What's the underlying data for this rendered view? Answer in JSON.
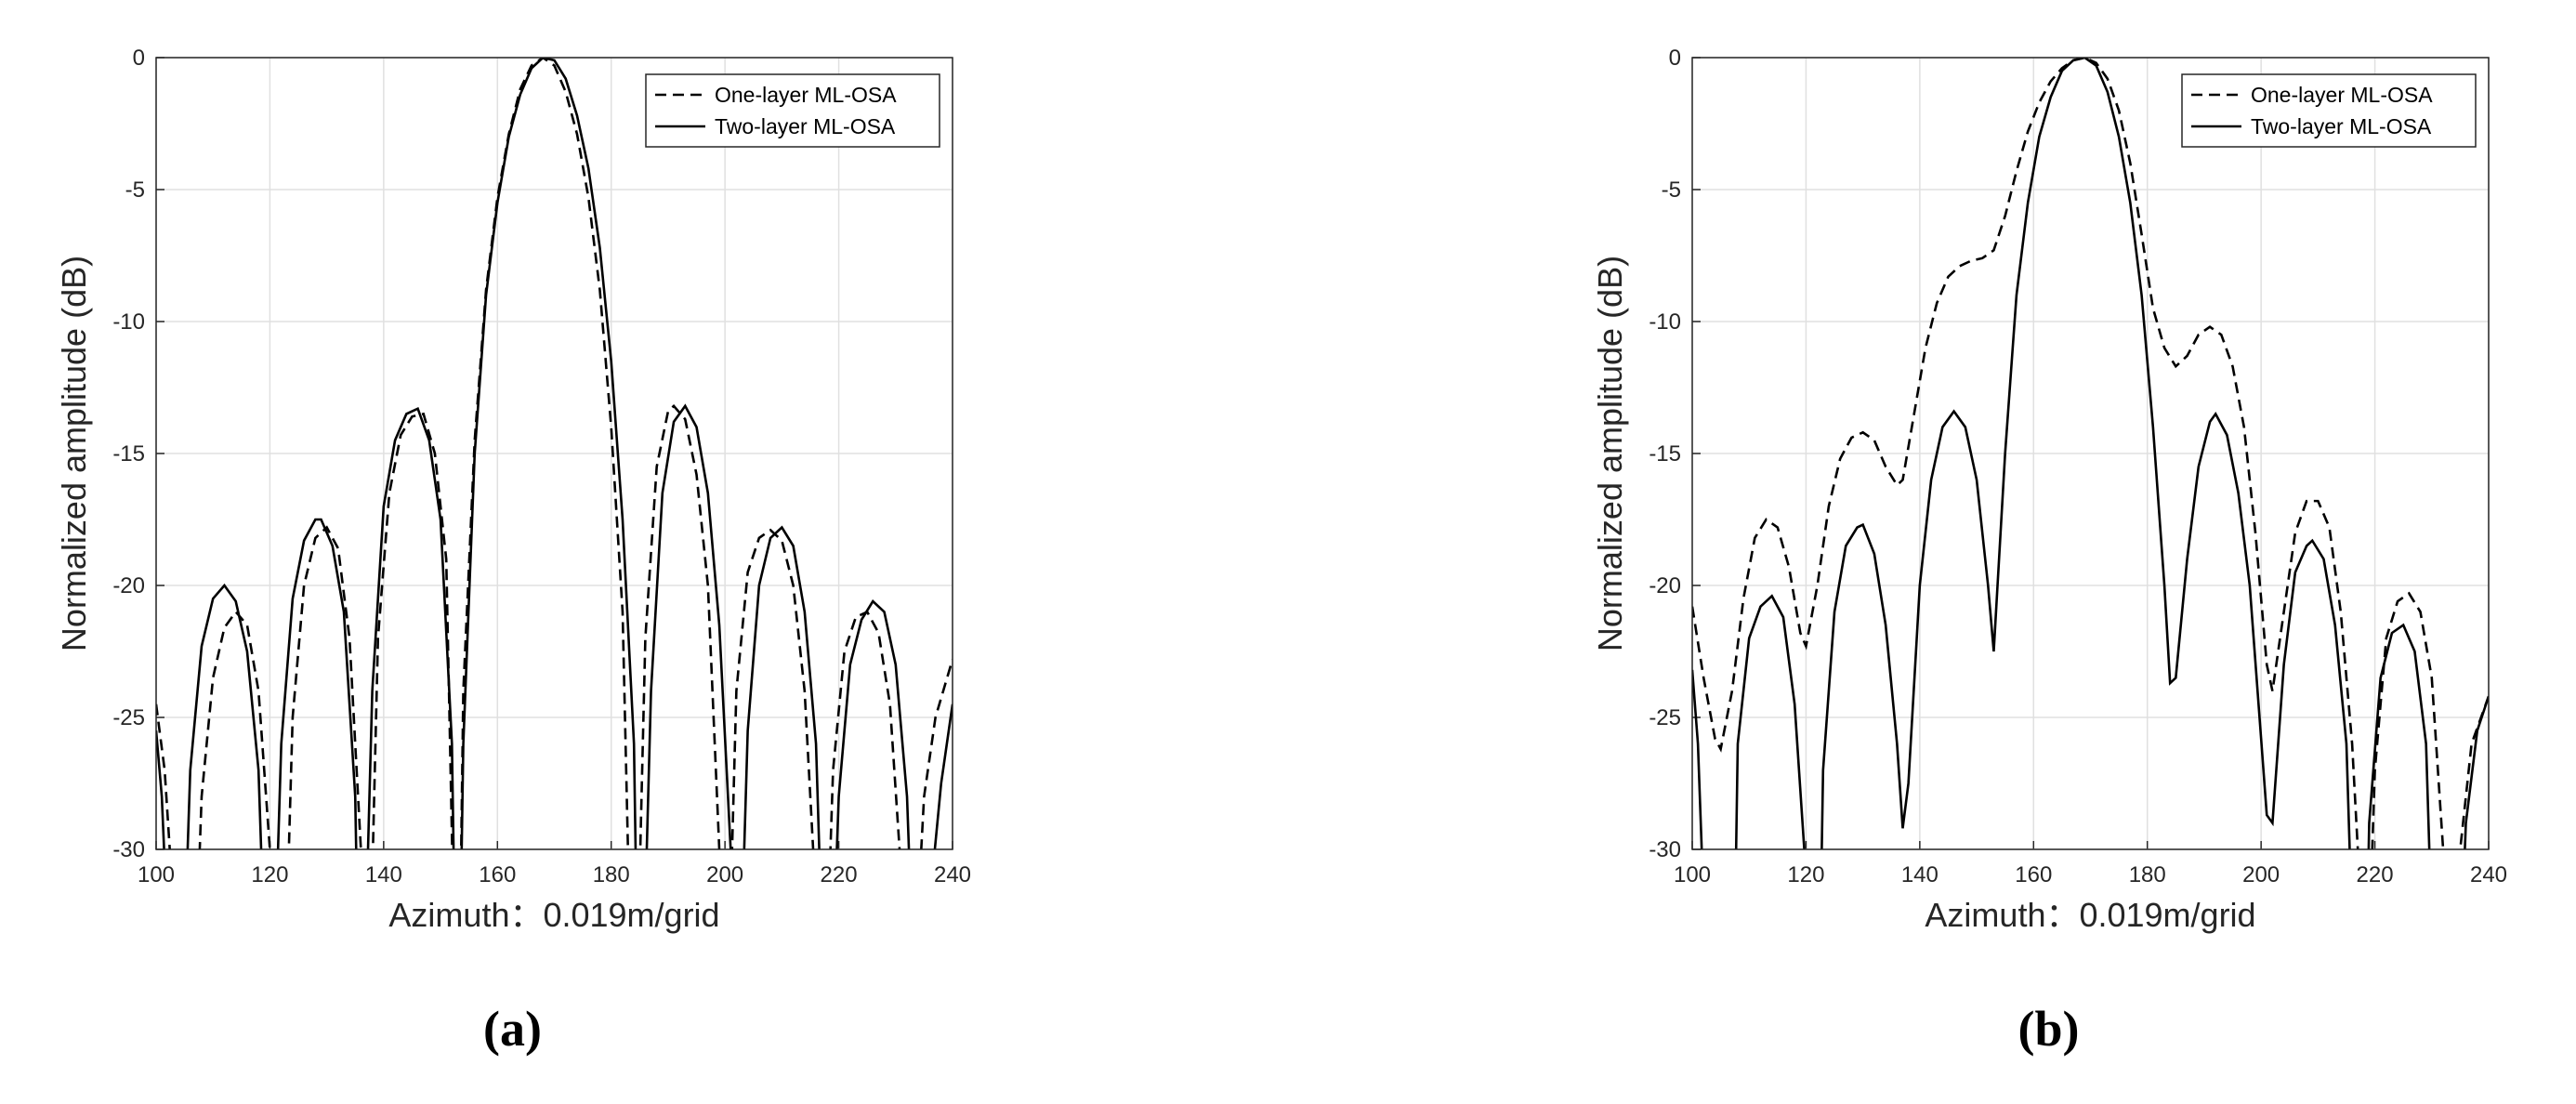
{
  "chart_data": [
    {
      "type": "line",
      "xlabel": "Azimuth：0.019m/grid",
      "ylabel": "Normalized amplitude (dB)",
      "caption": "(a)",
      "xlim": [
        100,
        240
      ],
      "xticks": [
        100,
        120,
        140,
        160,
        180,
        200,
        220,
        240
      ],
      "ylim": [
        -30,
        0
      ],
      "yticks": [
        -30,
        -25,
        -20,
        -15,
        -10,
        -5,
        0
      ],
      "grid": true,
      "legend": "upper right",
      "series": [
        {
          "name": "One-layer ML-OSA",
          "color": "#000000",
          "dash": "dashed",
          "x": [
            100,
            101.5,
            103,
            106,
            108,
            110,
            112,
            114,
            116,
            118,
            120,
            122,
            124,
            126,
            128,
            130,
            132,
            134,
            136,
            137,
            139,
            141,
            143,
            145,
            147,
            149,
            151,
            153,
            154,
            156,
            158,
            160,
            162,
            164,
            166,
            168,
            170,
            172,
            174,
            176,
            178,
            180,
            182,
            184,
            186,
            188,
            190,
            191,
            193,
            195,
            197,
            199,
            200,
            202,
            204,
            206,
            208,
            210,
            212,
            214,
            216,
            217,
            219,
            221,
            223,
            225,
            227,
            229,
            231,
            232,
            235,
            237,
            240
          ],
          "values": [
            -24.5,
            -27,
            -32,
            -40,
            -28,
            -23.5,
            -21.6,
            -21,
            -21.5,
            -24,
            -30,
            -40,
            -25,
            -20,
            -18.2,
            -17.8,
            -18.6,
            -22,
            -30,
            -40,
            -22,
            -16.5,
            -14.3,
            -13.6,
            -13.5,
            -15,
            -19,
            -40,
            -24,
            -14.5,
            -8.8,
            -5.3,
            -2.9,
            -1.2,
            -0.3,
            0,
            -0.3,
            -1.3,
            -2.9,
            -5.3,
            -8.8,
            -14,
            -21,
            -40,
            -22,
            -15.5,
            -13.4,
            -13.2,
            -13.7,
            -15.8,
            -20,
            -30,
            -40,
            -24,
            -19.5,
            -18.2,
            -17.9,
            -18.3,
            -20,
            -24,
            -32,
            -40,
            -27,
            -22.5,
            -21.2,
            -21,
            -21.8,
            -24.5,
            -31,
            -40,
            -28,
            -25,
            -22.8
          ]
        },
        {
          "name": "Two-layer ML-OSA",
          "color": "#000000",
          "dash": "solid",
          "x": [
            100,
            101,
            102,
            104,
            106,
            108,
            110,
            112,
            114,
            116,
            118,
            120,
            122,
            124,
            126,
            128,
            129,
            131,
            133,
            135,
            136,
            138,
            140,
            142,
            144,
            146,
            148,
            150,
            152,
            153,
            154,
            156,
            158,
            160,
            162,
            164,
            166,
            168,
            170,
            172,
            174,
            176,
            178,
            180,
            182,
            184,
            185,
            187,
            189,
            191,
            193,
            195,
            197,
            199,
            201,
            202,
            204,
            206,
            208,
            210,
            212,
            214,
            216,
            218,
            220,
            222,
            224,
            226,
            228,
            230,
            232,
            234,
            236,
            238,
            240
          ],
          "values": [
            -25.5,
            -28,
            -33,
            -40,
            -27,
            -22.3,
            -20.5,
            -20,
            -20.6,
            -22.5,
            -27,
            -40,
            -26,
            -20.5,
            -18.3,
            -17.5,
            -17.5,
            -18.5,
            -21,
            -28,
            -40,
            -24,
            -17,
            -14.5,
            -13.5,
            -13.3,
            -14.5,
            -17.5,
            -26,
            -40,
            -26,
            -15,
            -9,
            -5.5,
            -3,
            -1.4,
            -0.4,
            0,
            -0.1,
            -0.8,
            -2.2,
            -4.2,
            -7.2,
            -11.5,
            -17.5,
            -26,
            -40,
            -24,
            -16.5,
            -13.8,
            -13.2,
            -14,
            -16.5,
            -21.5,
            -30,
            -40,
            -25.5,
            -20,
            -18.2,
            -17.8,
            -18.5,
            -21,
            -26,
            -40,
            -28,
            -23,
            -21.3,
            -20.6,
            -21,
            -23,
            -28,
            -40,
            -32,
            -27.5,
            -24.5
          ]
        }
      ]
    },
    {
      "type": "line",
      "xlabel": "Azimuth：0.019m/grid",
      "ylabel": "Normalized amplitude (dB)",
      "caption": "(b)",
      "xlim": [
        100,
        240
      ],
      "xticks": [
        100,
        120,
        140,
        160,
        180,
        200,
        220,
        240
      ],
      "ylim": [
        -30,
        0
      ],
      "yticks": [
        -30,
        -25,
        -20,
        -15,
        -10,
        -5,
        0
      ],
      "grid": true,
      "legend": "upper right",
      "series": [
        {
          "name": "One-layer ML-OSA",
          "color": "#000000",
          "dash": "dashed",
          "x": [
            100,
            102,
            104,
            105,
            107,
            109,
            111,
            113,
            115,
            117,
            119,
            120,
            122,
            124,
            126,
            128,
            130,
            132,
            134,
            136,
            137,
            139,
            141,
            143,
            145,
            147,
            149,
            151,
            153,
            155,
            157,
            159,
            161,
            163,
            165,
            167,
            169,
            171,
            173,
            175,
            177,
            179,
            181,
            183,
            185,
            187,
            189,
            191,
            193,
            195,
            197,
            199,
            201,
            202,
            204,
            206,
            208,
            210,
            212,
            214,
            216,
            217,
            218,
            220,
            222,
            224,
            226,
            228,
            230,
            232,
            233,
            235,
            237,
            240
          ],
          "values": [
            -20.8,
            -23.5,
            -25.8,
            -26.2,
            -24,
            -20.5,
            -18.2,
            -17.5,
            -17.8,
            -19.3,
            -21.8,
            -22.3,
            -20,
            -17,
            -15.2,
            -14.4,
            -14.2,
            -14.5,
            -15.5,
            -16.2,
            -16,
            -13.5,
            -11,
            -9.3,
            -8.3,
            -7.9,
            -7.7,
            -7.6,
            -7.3,
            -6,
            -4.3,
            -2.8,
            -1.7,
            -0.9,
            -0.4,
            -0.1,
            0,
            -0.2,
            -0.8,
            -2,
            -4,
            -6.7,
            -9.5,
            -11,
            -11.7,
            -11.3,
            -10.5,
            -10.2,
            -10.5,
            -11.7,
            -14,
            -18,
            -23,
            -24,
            -21,
            -18,
            -16.8,
            -16.8,
            -17.8,
            -21,
            -26,
            -30,
            -40,
            -27,
            -22,
            -20.6,
            -20.3,
            -21,
            -23.5,
            -30,
            -40,
            -30,
            -26,
            -24.2
          ]
        },
        {
          "name": "Two-layer ML-OSA",
          "color": "#000000",
          "dash": "solid",
          "x": [
            100,
            101,
            102,
            103,
            107,
            108,
            110,
            112,
            114,
            116,
            118,
            120,
            121,
            122,
            123,
            125,
            127,
            129,
            130,
            132,
            134,
            136,
            137,
            138,
            140,
            142,
            144,
            146,
            148,
            150,
            152,
            153,
            155,
            157,
            159,
            161,
            163,
            165,
            167,
            169,
            171,
            173,
            175,
            177,
            179,
            181,
            183,
            184,
            185,
            187,
            189,
            191,
            192,
            194,
            196,
            198,
            201,
            202,
            204,
            206,
            208,
            209,
            211,
            213,
            215,
            217,
            218,
            219,
            221,
            223,
            225,
            227,
            229,
            231,
            234,
            236,
            238,
            240
          ],
          "values": [
            -23.2,
            -26,
            -32,
            -40,
            -40,
            -26,
            -22,
            -20.8,
            -20.4,
            -21.2,
            -24.5,
            -31,
            -40,
            -40,
            -27,
            -21,
            -18.5,
            -17.8,
            -17.7,
            -18.8,
            -21.5,
            -26,
            -29.2,
            -27.5,
            -20,
            -16,
            -14,
            -13.4,
            -14,
            -16,
            -20,
            -22.5,
            -15,
            -9,
            -5.5,
            -3,
            -1.5,
            -0.5,
            -0.1,
            0,
            -0.3,
            -1.3,
            -3,
            -5.5,
            -9,
            -14,
            -20,
            -23.7,
            -23.5,
            -19,
            -15.5,
            -13.8,
            -13.5,
            -14.3,
            -16.5,
            -20,
            -28.7,
            -29,
            -23,
            -19.5,
            -18.5,
            -18.3,
            -19,
            -21.5,
            -26,
            -40,
            -40,
            -29,
            -23.5,
            -21.8,
            -21.5,
            -22.5,
            -26,
            -40,
            -40,
            -29,
            -25.5,
            -24.2
          ]
        }
      ]
    }
  ]
}
